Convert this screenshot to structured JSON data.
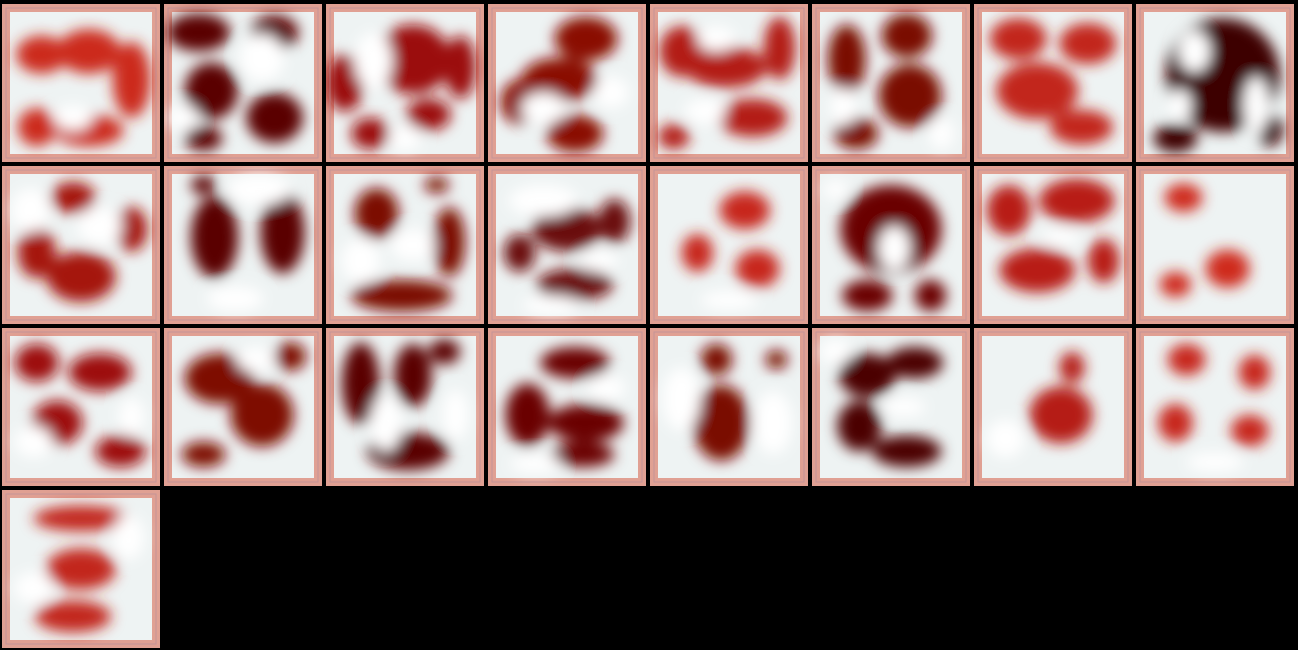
{
  "grid": {
    "columns": 8,
    "tile_count": 25,
    "background": "#000000",
    "frame_color": "#e0a093",
    "inner_color": "#eef3f3",
    "dark_red": "#3d0204",
    "mid_red": "#8e0d06",
    "light_red": "#c7281a"
  },
  "tiles": [
    {
      "tone": "#cc2a1c",
      "blobs": [
        [
          0.25,
          0.32,
          0.16,
          0.12
        ],
        [
          0.55,
          0.3,
          0.2,
          0.14
        ],
        [
          0.82,
          0.48,
          0.12,
          0.24
        ],
        [
          0.22,
          0.78,
          0.12,
          0.12
        ],
        [
          0.55,
          0.8,
          0.22,
          0.1
        ]
      ],
      "whites": [
        [
          0.45,
          0.72,
          0.12,
          0.08
        ]
      ]
    },
    {
      "tone": "#5a0606",
      "blobs": [
        [
          0.22,
          0.18,
          0.2,
          0.12
        ],
        [
          0.7,
          0.18,
          0.15,
          0.11
        ],
        [
          0.3,
          0.55,
          0.17,
          0.18
        ],
        [
          0.7,
          0.72,
          0.18,
          0.16
        ],
        [
          0.25,
          0.85,
          0.12,
          0.08
        ]
      ],
      "whites": [
        [
          0.62,
          0.34,
          0.14,
          0.15
        ],
        [
          0.12,
          0.72,
          0.1,
          0.08
        ]
      ]
    },
    {
      "tone": "#9b0f08",
      "blobs": [
        [
          0.12,
          0.5,
          0.12,
          0.18
        ],
        [
          0.55,
          0.35,
          0.24,
          0.22
        ],
        [
          0.85,
          0.4,
          0.1,
          0.2
        ],
        [
          0.28,
          0.82,
          0.12,
          0.1
        ],
        [
          0.65,
          0.7,
          0.14,
          0.1
        ]
      ],
      "whites": [
        [
          0.3,
          0.36,
          0.12,
          0.18
        ],
        [
          0.5,
          0.85,
          0.1,
          0.08
        ]
      ]
    },
    {
      "tone": "#8a0c06",
      "blobs": [
        [
          0.62,
          0.22,
          0.2,
          0.14
        ],
        [
          0.45,
          0.48,
          0.24,
          0.14
        ],
        [
          0.2,
          0.62,
          0.12,
          0.14
        ],
        [
          0.55,
          0.82,
          0.18,
          0.12
        ]
      ],
      "whites": [
        [
          0.35,
          0.66,
          0.14,
          0.1
        ],
        [
          0.78,
          0.56,
          0.11,
          0.1
        ]
      ]
    },
    {
      "tone": "#b31d12",
      "blobs": [
        [
          0.2,
          0.3,
          0.14,
          0.16
        ],
        [
          0.48,
          0.4,
          0.26,
          0.13
        ],
        [
          0.82,
          0.28,
          0.1,
          0.2
        ],
        [
          0.65,
          0.72,
          0.22,
          0.12
        ],
        [
          0.15,
          0.84,
          0.1,
          0.08
        ]
      ],
      "whites": [
        [
          0.42,
          0.22,
          0.12,
          0.08
        ],
        [
          0.35,
          0.68,
          0.13,
          0.08
        ]
      ]
    },
    {
      "tone": "#7a0905",
      "blobs": [
        [
          0.22,
          0.35,
          0.12,
          0.22
        ],
        [
          0.6,
          0.2,
          0.16,
          0.14
        ],
        [
          0.62,
          0.58,
          0.2,
          0.2
        ],
        [
          0.28,
          0.82,
          0.14,
          0.1
        ]
      ],
      "whites": [
        [
          0.2,
          0.65,
          0.08,
          0.12
        ],
        [
          0.82,
          0.82,
          0.08,
          0.1
        ]
      ]
    },
    {
      "tone": "#c2271a",
      "blobs": [
        [
          0.28,
          0.22,
          0.18,
          0.13
        ],
        [
          0.72,
          0.25,
          0.18,
          0.13
        ],
        [
          0.4,
          0.55,
          0.26,
          0.18
        ],
        [
          0.68,
          0.78,
          0.2,
          0.11
        ]
      ],
      "whites": []
    },
    {
      "tone": "#3e0203",
      "blobs": [
        [
          0.55,
          0.45,
          0.36,
          0.36
        ],
        [
          0.25,
          0.85,
          0.14,
          0.09
        ],
        [
          0.85,
          0.8,
          0.08,
          0.1
        ]
      ],
      "whites": [
        [
          0.37,
          0.3,
          0.1,
          0.13
        ],
        [
          0.76,
          0.64,
          0.08,
          0.18
        ],
        [
          0.28,
          0.64,
          0.07,
          0.1
        ]
      ]
    },
    {
      "tone": "#a51409",
      "blobs": [
        [
          0.45,
          0.2,
          0.14,
          0.1
        ],
        [
          0.22,
          0.55,
          0.12,
          0.16
        ],
        [
          0.5,
          0.7,
          0.22,
          0.16
        ],
        [
          0.82,
          0.4,
          0.1,
          0.14
        ]
      ],
      "whites": [
        [
          0.18,
          0.28,
          0.12,
          0.14
        ],
        [
          0.62,
          0.38,
          0.14,
          0.12
        ]
      ]
    },
    {
      "tone": "#5a0606",
      "blobs": [
        [
          0.32,
          0.45,
          0.15,
          0.26
        ],
        [
          0.75,
          0.42,
          0.14,
          0.26
        ],
        [
          0.25,
          0.12,
          0.08,
          0.06
        ]
      ],
      "whites": [
        [
          0.6,
          0.15,
          0.2,
          0.1
        ],
        [
          0.45,
          0.84,
          0.18,
          0.08
        ]
      ]
    },
    {
      "tone": "#7c0905",
      "blobs": [
        [
          0.32,
          0.3,
          0.14,
          0.16
        ],
        [
          0.78,
          0.48,
          0.1,
          0.22
        ],
        [
          0.48,
          0.82,
          0.32,
          0.1
        ],
        [
          0.7,
          0.12,
          0.08,
          0.05
        ]
      ],
      "whites": [
        [
          0.22,
          0.6,
          0.12,
          0.14
        ],
        [
          0.55,
          0.5,
          0.14,
          0.1
        ]
      ]
    },
    {
      "tone": "#6a0707",
      "blobs": [
        [
          0.5,
          0.4,
          0.22,
          0.14
        ],
        [
          0.8,
          0.35,
          0.1,
          0.14
        ],
        [
          0.55,
          0.75,
          0.24,
          0.1
        ],
        [
          0.2,
          0.55,
          0.1,
          0.12
        ]
      ],
      "whites": [
        [
          0.35,
          0.22,
          0.22,
          0.1
        ],
        [
          0.4,
          0.88,
          0.18,
          0.06
        ],
        [
          0.7,
          0.6,
          0.12,
          0.07
        ]
      ]
    },
    {
      "tone": "#c7281a",
      "blobs": [
        [
          0.6,
          0.28,
          0.16,
          0.12
        ],
        [
          0.3,
          0.55,
          0.1,
          0.12
        ],
        [
          0.68,
          0.65,
          0.14,
          0.12
        ]
      ],
      "whites": [
        [
          0.5,
          0.85,
          0.18,
          0.06
        ]
      ]
    },
    {
      "tone": "#6a0606",
      "blobs": [
        [
          0.5,
          0.4,
          0.32,
          0.28
        ],
        [
          0.35,
          0.82,
          0.16,
          0.1
        ],
        [
          0.75,
          0.82,
          0.1,
          0.1
        ]
      ],
      "whites": [
        [
          0.52,
          0.52,
          0.1,
          0.14
        ],
        [
          0.15,
          0.15,
          0.08,
          0.06
        ]
      ]
    },
    {
      "tone": "#b81f14",
      "blobs": [
        [
          0.22,
          0.28,
          0.14,
          0.16
        ],
        [
          0.65,
          0.22,
          0.24,
          0.14
        ],
        [
          0.4,
          0.66,
          0.24,
          0.14
        ],
        [
          0.82,
          0.6,
          0.1,
          0.14
        ]
      ],
      "whites": [
        [
          0.55,
          0.45,
          0.12,
          0.05
        ]
      ]
    },
    {
      "tone": "#cf2c1e",
      "blobs": [
        [
          0.3,
          0.2,
          0.12,
          0.09
        ],
        [
          0.58,
          0.65,
          0.14,
          0.12
        ],
        [
          0.25,
          0.75,
          0.1,
          0.08
        ]
      ],
      "whites": []
    },
    {
      "tone": "#9d1008",
      "blobs": [
        [
          0.22,
          0.22,
          0.14,
          0.12
        ],
        [
          0.62,
          0.28,
          0.2,
          0.12
        ],
        [
          0.35,
          0.6,
          0.16,
          0.14
        ],
        [
          0.75,
          0.78,
          0.16,
          0.1
        ]
      ],
      "whites": [
        [
          0.2,
          0.72,
          0.12,
          0.1
        ],
        [
          0.82,
          0.56,
          0.08,
          0.12
        ]
      ]
    },
    {
      "tone": "#7e0b06",
      "blobs": [
        [
          0.35,
          0.32,
          0.22,
          0.16
        ],
        [
          0.8,
          0.18,
          0.1,
          0.09
        ],
        [
          0.62,
          0.55,
          0.2,
          0.2
        ],
        [
          0.25,
          0.8,
          0.14,
          0.08
        ]
      ],
      "whites": [
        [
          0.58,
          0.2,
          0.12,
          0.08
        ]
      ]
    },
    {
      "tone": "#5a0505",
      "blobs": [
        [
          0.22,
          0.35,
          0.12,
          0.26
        ],
        [
          0.55,
          0.3,
          0.12,
          0.2
        ],
        [
          0.75,
          0.15,
          0.1,
          0.08
        ],
        [
          0.52,
          0.78,
          0.26,
          0.12
        ]
      ],
      "whites": [
        [
          0.38,
          0.6,
          0.1,
          0.18
        ],
        [
          0.82,
          0.55,
          0.08,
          0.16
        ]
      ]
    },
    {
      "tone": "#6a0606",
      "blobs": [
        [
          0.55,
          0.22,
          0.22,
          0.1
        ],
        [
          0.25,
          0.55,
          0.14,
          0.2
        ],
        [
          0.62,
          0.6,
          0.24,
          0.12
        ],
        [
          0.6,
          0.8,
          0.2,
          0.08
        ]
      ],
      "whites": [
        [
          0.75,
          0.38,
          0.12,
          0.08
        ],
        [
          0.3,
          0.86,
          0.16,
          0.06
        ]
      ]
    },
    {
      "tone": "#7a0905",
      "blobs": [
        [
          0.42,
          0.2,
          0.1,
          0.1
        ],
        [
          0.45,
          0.6,
          0.18,
          0.24
        ],
        [
          0.8,
          0.2,
          0.07,
          0.06
        ]
      ],
      "whites": [
        [
          0.2,
          0.45,
          0.12,
          0.2
        ],
        [
          0.78,
          0.6,
          0.12,
          0.2
        ]
      ]
    },
    {
      "tone": "#4c0404",
      "blobs": [
        [
          0.35,
          0.3,
          0.18,
          0.14
        ],
        [
          0.65,
          0.22,
          0.18,
          0.1
        ],
        [
          0.3,
          0.62,
          0.14,
          0.16
        ],
        [
          0.6,
          0.78,
          0.22,
          0.1
        ]
      ],
      "whites": [
        [
          0.15,
          0.15,
          0.1,
          0.08
        ],
        [
          0.58,
          0.5,
          0.14,
          0.06
        ]
      ]
    },
    {
      "tone": "#b51d12",
      "blobs": [
        [
          0.55,
          0.55,
          0.2,
          0.18
        ],
        [
          0.62,
          0.25,
          0.08,
          0.1
        ]
      ],
      "whites": [
        [
          0.2,
          0.7,
          0.12,
          0.12
        ]
      ]
    },
    {
      "tone": "#c7281a",
      "blobs": [
        [
          0.32,
          0.2,
          0.12,
          0.1
        ],
        [
          0.75,
          0.28,
          0.1,
          0.11
        ],
        [
          0.25,
          0.6,
          0.11,
          0.12
        ],
        [
          0.72,
          0.65,
          0.12,
          0.1
        ]
      ],
      "whites": [
        [
          0.5,
          0.85,
          0.18,
          0.06
        ]
      ]
    },
    {
      "tone": "#c2261a",
      "blobs": [
        [
          0.5,
          0.18,
          0.3,
          0.08
        ],
        [
          0.5,
          0.5,
          0.22,
          0.13
        ],
        [
          0.45,
          0.8,
          0.24,
          0.1
        ]
      ],
      "whites": [
        [
          0.2,
          0.62,
          0.12,
          0.1
        ],
        [
          0.8,
          0.3,
          0.1,
          0.14
        ]
      ]
    }
  ]
}
